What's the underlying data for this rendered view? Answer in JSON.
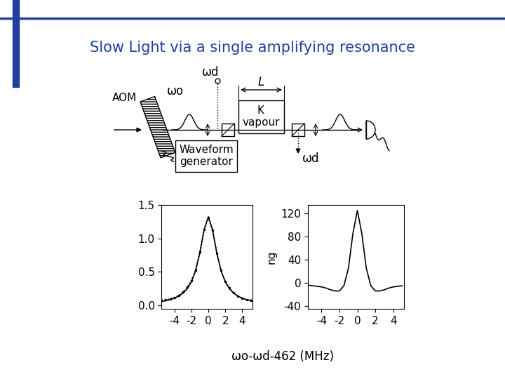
{
  "title": "Slow Light via a single amplifying resonance",
  "diagram": {
    "aom": "AOM",
    "omega_o": "ωo",
    "omega_d_top": "ωd",
    "length": "L",
    "cell": "K\nvapour",
    "generator": "Waveform\ngenerator",
    "omega_d_bottom": "ωd"
  },
  "xlabel": "ωo-ωd-462 (MHz)",
  "chart_data": [
    {
      "type": "line",
      "x": [
        -5.5,
        -5,
        -4.5,
        -4,
        -3.5,
        -3,
        -2.5,
        -2,
        -1.5,
        -1,
        -0.5,
        0,
        0.5,
        1,
        1.5,
        2,
        2.5,
        3,
        3.5,
        4,
        4.5,
        5
      ],
      "series": [
        {
          "color": "#000000",
          "line_style": "dotted",
          "marker": "point",
          "values": [
            0.08,
            0.09,
            0.1,
            0.12,
            0.15,
            0.2,
            0.27,
            0.37,
            0.53,
            0.8,
            1.13,
            1.31,
            1.12,
            0.78,
            0.52,
            0.36,
            0.26,
            0.19,
            0.14,
            0.11,
            0.09,
            0.08
          ]
        },
        {
          "color": "#000000",
          "line_style": "solid",
          "marker": "none",
          "values": [
            0.06,
            0.072,
            0.088,
            0.109,
            0.139,
            0.182,
            0.247,
            0.349,
            0.515,
            0.779,
            1.124,
            1.32,
            1.124,
            0.779,
            0.515,
            0.349,
            0.247,
            0.182,
            0.139,
            0.109,
            0.088,
            0.072
          ]
        }
      ],
      "xlim": [
        -5.5,
        5.2
      ],
      "xticks": [
        -4,
        -2,
        0,
        2,
        4
      ],
      "ylim": [
        -0.05,
        1.5
      ],
      "yticks": [
        {
          "value": 0,
          "label": "0.0"
        },
        {
          "value": 0.5,
          "label": "0.5"
        },
        {
          "value": 1,
          "label": "1.0"
        },
        {
          "value": 1.5,
          "label": "1.5"
        }
      ]
    },
    {
      "type": "line",
      "ylabel": "ng",
      "x": [
        -5.5,
        -5,
        -4.5,
        -4,
        -3.5,
        -3,
        -2.5,
        -2,
        -1.5,
        -1,
        -0.5,
        0,
        0.5,
        1,
        1.5,
        2,
        2.5,
        3,
        3.5,
        4,
        4.5,
        5
      ],
      "series": [
        {
          "color": "#000000",
          "line_style": "solid",
          "marker": "none",
          "values": [
            -4,
            -5,
            -6,
            -7,
            -9,
            -12,
            -14,
            -14,
            -5,
            25,
            85,
            125,
            85,
            25,
            -5,
            -14,
            -14,
            -12,
            -9,
            -7,
            -6,
            -5
          ]
        }
      ],
      "xlim": [
        -5.5,
        5.2
      ],
      "xticks": [
        -4,
        -2,
        0,
        2,
        4
      ],
      "ylim": [
        -45,
        135
      ],
      "yticks": [
        -40,
        0,
        40,
        80,
        120
      ]
    }
  ]
}
